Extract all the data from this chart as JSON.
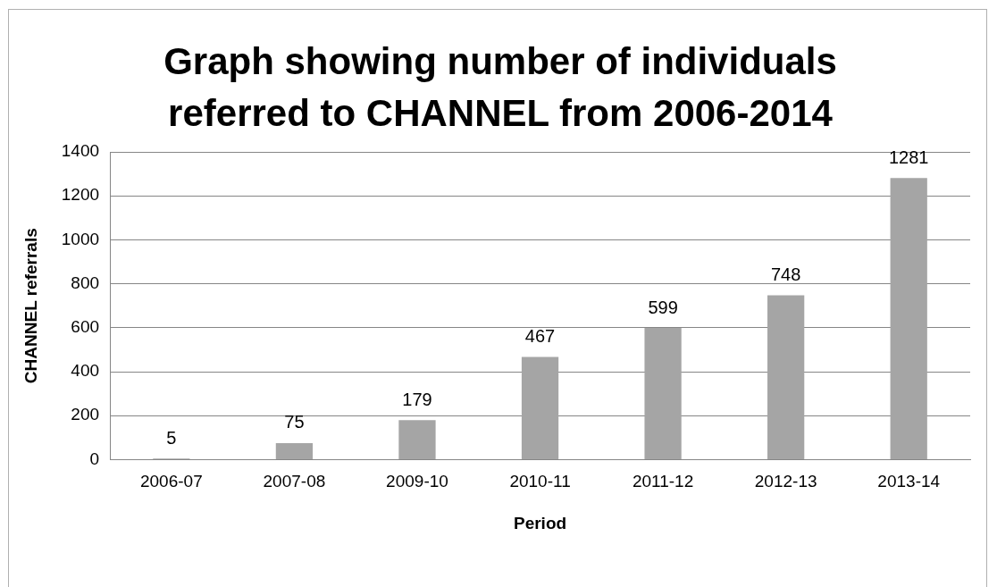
{
  "chart_data": {
    "type": "bar",
    "title": "Graph showing number of individuals referred to CHANNEL from 2006-2014",
    "xlabel": "Period",
    "ylabel": "CHANNEL referrals",
    "categories": [
      "2006-07",
      "2007-08",
      "2009-10",
      "2010-11",
      "2011-12",
      "2012-13",
      "2013-14"
    ],
    "values": [
      5,
      75,
      179,
      467,
      599,
      748,
      1281
    ],
    "color": "#a5a5a5",
    "ylim": [
      0,
      1400
    ],
    "yticks": [
      0,
      200,
      400,
      600,
      800,
      1000,
      1200,
      1400
    ],
    "grid": "y",
    "data_labels": true,
    "legend": false
  }
}
